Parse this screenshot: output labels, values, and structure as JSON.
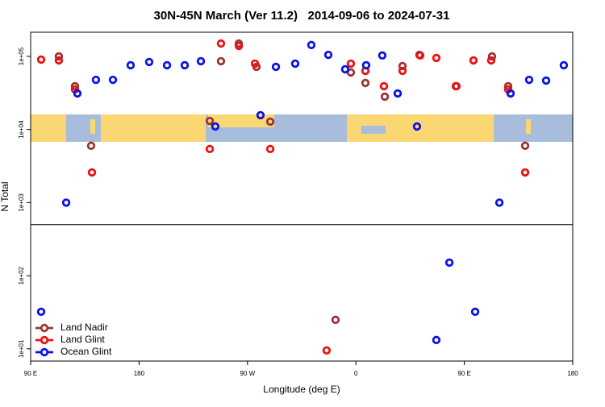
{
  "chart_data": {
    "type": "scatter",
    "title": "30N-45N March (Ver 11.2)   2014-09-06 to 2024-07-31",
    "x_label": "Longitude (deg E)",
    "y_label": "N Total",
    "xlim": [
      90,
      540
    ],
    "xticks": [
      {
        "value": 90,
        "label": "90 E"
      },
      180,
      {
        "value": 270,
        "label": "90 W"
      },
      {
        "value": 360,
        "label": "0"
      },
      {
        "value": 450,
        "label": "90 E"
      },
      {
        "value": 540,
        "label": "180"
      }
    ],
    "ylim": [
      6.8,
      214000
    ],
    "log_y": true,
    "yticks": [
      {
        "value": 10,
        "label": "1e+01"
      },
      {
        "value": 100,
        "label": "1e+02"
      },
      {
        "value": 1000,
        "label": "1e+03"
      },
      {
        "value": 10000,
        "label": "1e+04"
      },
      {
        "value": 100000,
        "label": "1e+05"
      }
    ],
    "hline": 500,
    "legend": "bottom-left",
    "series": [
      {
        "name": "Land Nadir",
        "color": "#9b3535",
        "x": [
          113.4,
          126.8,
          140.2,
          238.7,
          248.0,
          262.8,
          277.5,
          288.9,
          355.8,
          367.9,
          384.0,
          398.7,
          412.7,
          442.9,
          473.0,
          486.4,
          500.5,
          343.1
        ],
        "values": [
          100000,
          39100,
          5990,
          13100,
          85900,
          150000,
          71900,
          12800,
          60300,
          43300,
          28100,
          73800,
          105000,
          39100,
          100000,
          39100,
          5990,
          24.9
        ]
      },
      {
        "name": "Land Glint",
        "color": "#ee1111",
        "x": [
          98.7,
          113.4,
          126.8,
          140.9,
          238.7,
          248.0,
          262.8,
          276.2,
          288.9,
          355.8,
          367.9,
          383.3,
          398.7,
          413.4,
          426.8,
          443.5,
          457.6,
          472.3,
          486.4,
          500.5,
          335.7
        ],
        "values": [
          90400,
          88100,
          35300,
          2590,
          5410,
          150000,
          139000,
          79600,
          5410,
          79600,
          63400,
          39100,
          63400,
          103000,
          95100,
          39100,
          88100,
          88100,
          35300,
          2590,
          9.5
        ]
      },
      {
        "name": "Ocean Glint",
        "color": "#0a14e6",
        "x": [
          98.7,
          119.5,
          128.8,
          144.2,
          158.3,
          173.0,
          188.4,
          203.2,
          217.9,
          231.3,
          243.3,
          280.8,
          293.6,
          309.6,
          323.0,
          337.1,
          351.1,
          368.5,
          381.9,
          394.7,
          410.7,
          426.8,
          437.6,
          459.0,
          479.1,
          488.4,
          503.8,
          517.9,
          532.6
        ],
        "values": [
          32.1,
          1000,
          31100,
          47800,
          47800,
          75700,
          83800,
          75700,
          75700,
          85900,
          11000,
          15700,
          71900,
          79600,
          143000,
          105000,
          66700,
          75700,
          103000,
          31100,
          11000,
          13.2,
          151,
          32.1,
          1000,
          31100,
          47800,
          46700,
          75700
        ]
      }
    ]
  }
}
